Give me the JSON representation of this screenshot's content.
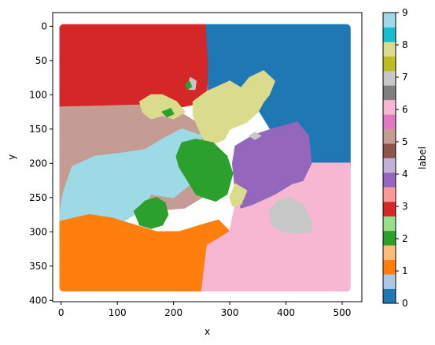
{
  "chart_data": {
    "type": "heatmap",
    "title": "",
    "xlabel": "x",
    "ylabel": "y",
    "xlim": [
      -15,
      535
    ],
    "ylim": [
      402,
      -20
    ],
    "y_inverted": true,
    "x_ticks": [
      0,
      100,
      200,
      300,
      400,
      500
    ],
    "y_ticks": [
      0,
      50,
      100,
      150,
      200,
      250,
      300,
      350,
      400
    ],
    "colorbar": {
      "label": "label",
      "range": [
        0,
        9
      ],
      "ticks": [
        0,
        1,
        2,
        3,
        4,
        5,
        6,
        7,
        8,
        9
      ],
      "colormap": "tab20",
      "colors": [
        "#1f77b4",
        "#aec7e8",
        "#ff7f0e",
        "#ffbb78",
        "#2ca02c",
        "#98df8a",
        "#d62728",
        "#ff9896",
        "#9467bd",
        "#c5b0d5",
        "#8c564b",
        "#c49c94",
        "#e377c2",
        "#f7b6d2",
        "#7f7f7f",
        "#c7c7c7",
        "#bcbd22",
        "#dbdb8d",
        "#17becf",
        "#9edae5"
      ]
    },
    "regions": [
      {
        "label": 3,
        "color": "#d62728",
        "points": [
          [
            -3,
            -3
          ],
          [
            258,
            -3
          ],
          [
            262,
            50
          ],
          [
            258,
            110
          ],
          [
            200,
            120
          ],
          [
            150,
            115
          ],
          [
            -3,
            118
          ]
        ]
      },
      {
        "label": 0,
        "color": "#1f77b4",
        "points": [
          [
            258,
            -3
          ],
          [
            515,
            -3
          ],
          [
            515,
            205
          ],
          [
            440,
            200
          ],
          [
            420,
            150
          ],
          [
            380,
            160
          ],
          [
            350,
            120
          ],
          [
            300,
            85
          ],
          [
            262,
            95
          ],
          [
            262,
            50
          ]
        ]
      },
      {
        "label": 5,
        "color": "#c49c94",
        "points": [
          [
            -3,
            118
          ],
          [
            150,
            115
          ],
          [
            200,
            120
          ],
          [
            240,
            140
          ],
          [
            260,
            160
          ],
          [
            250,
            190
          ],
          [
            260,
            220
          ],
          [
            250,
            250
          ],
          [
            220,
            265
          ],
          [
            150,
            270
          ],
          [
            90,
            265
          ],
          [
            55,
            275
          ],
          [
            -3,
            280
          ]
        ]
      },
      {
        "label": 9,
        "color": "#9edae5",
        "points": [
          [
            -3,
            275
          ],
          [
            5,
            240
          ],
          [
            20,
            205
          ],
          [
            60,
            190
          ],
          [
            110,
            185
          ],
          [
            150,
            180
          ],
          [
            180,
            165
          ],
          [
            215,
            150
          ],
          [
            250,
            160
          ],
          [
            240,
            200
          ],
          [
            230,
            230
          ],
          [
            200,
            250
          ],
          [
            160,
            245
          ],
          [
            140,
            270
          ],
          [
            110,
            285
          ],
          [
            90,
            310
          ],
          [
            50,
            325
          ],
          [
            -3,
            320
          ]
        ]
      },
      {
        "label": 1,
        "color": "#ff7f0e",
        "points": [
          [
            -3,
            285
          ],
          [
            50,
            275
          ],
          [
            90,
            280
          ],
          [
            130,
            290
          ],
          [
            170,
            300
          ],
          [
            210,
            300
          ],
          [
            250,
            290
          ],
          [
            280,
            283
          ],
          [
            300,
            300
          ],
          [
            280,
            310
          ],
          [
            260,
            320
          ],
          [
            250,
            387
          ],
          [
            -3,
            387
          ]
        ]
      },
      {
        "label": 6,
        "color": "#f7b6d2",
        "points": [
          [
            250,
            387
          ],
          [
            260,
            320
          ],
          [
            300,
            300
          ],
          [
            310,
            260
          ],
          [
            340,
            240
          ],
          [
            370,
            240
          ],
          [
            400,
            215
          ],
          [
            440,
            200
          ],
          [
            515,
            200
          ],
          [
            515,
            387
          ]
        ]
      },
      {
        "label": 8,
        "color": "#9467bd",
        "points": [
          [
            305,
            200
          ],
          [
            310,
            175
          ],
          [
            340,
            160
          ],
          [
            375,
            150
          ],
          [
            420,
            140
          ],
          [
            440,
            160
          ],
          [
            445,
            200
          ],
          [
            430,
            225
          ],
          [
            410,
            230
          ],
          [
            380,
            245
          ],
          [
            340,
            260
          ],
          [
            320,
            265
          ],
          [
            310,
            240
          ]
        ]
      },
      {
        "label": 7,
        "color": "#dbdb8d",
        "points": [
          [
            235,
            110
          ],
          [
            260,
            95
          ],
          [
            300,
            80
          ],
          [
            320,
            90
          ],
          [
            335,
            75
          ],
          [
            360,
            65
          ],
          [
            380,
            80
          ],
          [
            370,
            100
          ],
          [
            360,
            110
          ],
          [
            350,
            125
          ],
          [
            330,
            140
          ],
          [
            300,
            150
          ],
          [
            290,
            165
          ],
          [
            260,
            175
          ],
          [
            245,
            150
          ],
          [
            235,
            130
          ]
        ]
      },
      {
        "label": 7,
        "color": "#dbdb8d",
        "points": [
          [
            140,
            110
          ],
          [
            160,
            100
          ],
          [
            180,
            100
          ],
          [
            205,
            110
          ],
          [
            220,
            125
          ],
          [
            200,
            135
          ],
          [
            180,
            130
          ],
          [
            160,
            135
          ],
          [
            145,
            125
          ]
        ]
      },
      {
        "label": 7,
        "color": "#dbdb8d",
        "points": [
          [
            300,
            250
          ],
          [
            310,
            230
          ],
          [
            330,
            240
          ],
          [
            320,
            260
          ],
          [
            305,
            262
          ]
        ]
      },
      {
        "label": 4,
        "color": "#2ca02c",
        "points": [
          [
            215,
            170
          ],
          [
            240,
            165
          ],
          [
            270,
            170
          ],
          [
            295,
            190
          ],
          [
            305,
            215
          ],
          [
            295,
            245
          ],
          [
            275,
            255
          ],
          [
            255,
            250
          ],
          [
            240,
            245
          ],
          [
            225,
            225
          ],
          [
            210,
            205
          ],
          [
            205,
            190
          ]
        ]
      },
      {
        "label": 4,
        "color": "#2ca02c",
        "points": [
          [
            130,
            270
          ],
          [
            150,
            255
          ],
          [
            170,
            250
          ],
          [
            185,
            258
          ],
          [
            190,
            275
          ],
          [
            180,
            290
          ],
          [
            160,
            295
          ],
          [
            140,
            290
          ]
        ]
      },
      {
        "label": 7,
        "color": "#c7c7c7",
        "points": [
          [
            370,
            270
          ],
          [
            385,
            255
          ],
          [
            405,
            250
          ],
          [
            430,
            260
          ],
          [
            445,
            285
          ],
          [
            445,
            300
          ],
          [
            420,
            302
          ],
          [
            395,
            300
          ],
          [
            375,
            290
          ]
        ]
      },
      {
        "label": 7,
        "color": "#c7c7c7",
        "points": [
          [
            225,
            85
          ],
          [
            230,
            75
          ],
          [
            240,
            80
          ],
          [
            238,
            92
          ],
          [
            228,
            92
          ]
        ]
      },
      {
        "label": 4,
        "color": "#2ca02c",
        "points": [
          [
            222,
            85
          ],
          [
            228,
            80
          ],
          [
            232,
            88
          ],
          [
            225,
            92
          ]
        ]
      },
      {
        "label": 7,
        "color": "#c7c7c7",
        "points": [
          [
            335,
            160
          ],
          [
            345,
            155
          ],
          [
            355,
            160
          ],
          [
            345,
            165
          ]
        ]
      },
      {
        "label": 4,
        "color": "#2ca02c",
        "points": [
          [
            180,
            125
          ],
          [
            195,
            120
          ],
          [
            200,
            128
          ],
          [
            188,
            132
          ]
        ]
      }
    ]
  }
}
